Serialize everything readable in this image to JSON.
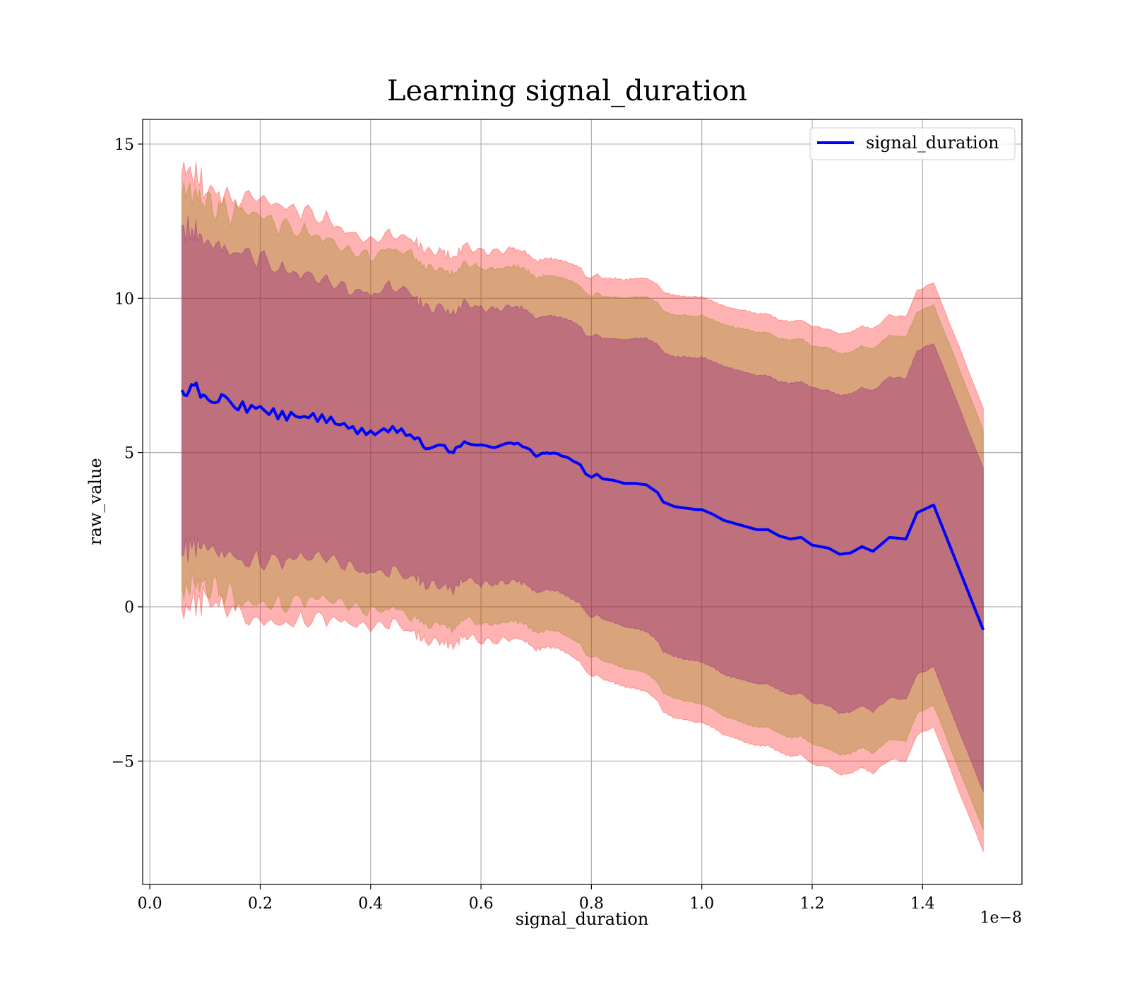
{
  "chart_data": {
    "type": "line",
    "title": "Learning signal_duration",
    "xlabel": "signal_duration",
    "ylabel": "raw_value",
    "x_offset_label": "1e−8",
    "xlim": [
      -0.013,
      1.58
    ],
    "ylim": [
      -9.0,
      15.8
    ],
    "x_ticks": [
      0.0,
      0.2,
      0.4,
      0.6,
      0.8,
      1.0,
      1.2,
      1.4
    ],
    "x_tick_labels": [
      "0.0",
      "0.2",
      "0.4",
      "0.6",
      "0.8",
      "1.0",
      "1.2",
      "1.4"
    ],
    "y_ticks": [
      -5,
      0,
      5,
      10,
      15
    ],
    "y_tick_labels": [
      "−5",
      "0",
      "5",
      "10",
      "15"
    ],
    "grid": true,
    "legend_position": "top-right",
    "series": [
      {
        "name": "signal_duration",
        "color": "#0000ff",
        "x": [
          0.058,
          0.08,
          0.1,
          0.13,
          0.16,
          0.2,
          0.24,
          0.28,
          0.32,
          0.36,
          0.4,
          0.44,
          0.48,
          0.5,
          0.53,
          0.55,
          0.57,
          0.6,
          0.63,
          0.66,
          0.68,
          0.7,
          0.72,
          0.74,
          0.76,
          0.78,
          0.79,
          0.8,
          0.81,
          0.82,
          0.84,
          0.86,
          0.88,
          0.9,
          0.92,
          0.93,
          0.95,
          0.97,
          0.99,
          1.0,
          1.02,
          1.04,
          1.06,
          1.08,
          1.1,
          1.12,
          1.14,
          1.16,
          1.18,
          1.2,
          1.23,
          1.25,
          1.27,
          1.29,
          1.31,
          1.34,
          1.37,
          1.39,
          1.42,
          1.51
        ],
        "y": [
          7.0,
          7.1,
          6.9,
          6.7,
          6.5,
          6.4,
          6.2,
          6.2,
          6.1,
          5.8,
          5.6,
          5.8,
          5.5,
          5.2,
          5.2,
          5.0,
          5.4,
          5.2,
          5.2,
          5.3,
          5.2,
          4.9,
          5.0,
          4.95,
          4.8,
          4.6,
          4.3,
          4.2,
          4.3,
          4.15,
          4.1,
          4.0,
          4.0,
          3.95,
          3.7,
          3.4,
          3.25,
          3.2,
          3.15,
          3.15,
          3.0,
          2.8,
          2.7,
          2.6,
          2.5,
          2.5,
          2.3,
          2.2,
          2.25,
          2.0,
          1.9,
          1.7,
          1.75,
          1.95,
          1.8,
          2.25,
          2.2,
          3.05,
          3.3,
          -0.75
        ]
      }
    ],
    "bands": [
      {
        "sigma": 2.0,
        "color": "#ff0000",
        "opacity": 0.3,
        "spread": [
          7.2,
          7.0,
          6.7,
          6.7,
          6.7,
          6.65,
          6.6,
          6.55,
          6.5,
          6.45,
          6.4,
          6.4,
          6.35,
          6.35,
          6.3,
          6.3,
          6.3,
          6.3,
          6.3,
          6.3,
          6.3,
          6.3,
          6.3,
          6.3,
          6.35,
          6.4,
          6.4,
          6.45,
          6.5,
          6.5,
          6.55,
          6.6,
          6.65,
          6.7,
          6.75,
          6.8,
          6.85,
          6.85,
          6.9,
          6.9,
          6.9,
          6.95,
          6.95,
          7.0,
          7.0,
          7.0,
          7.0,
          7.05,
          7.05,
          7.1,
          7.1,
          7.15,
          7.15,
          7.15,
          7.2,
          7.2,
          7.2,
          7.2,
          7.2,
          7.2
        ]
      },
      {
        "sigma": 1.65,
        "color": "#808000",
        "opacity": 0.3,
        "spread": [
          6.5,
          6.4,
          6.2,
          6.2,
          6.15,
          6.1,
          6.05,
          6.0,
          5.95,
          5.9,
          5.85,
          5.85,
          5.8,
          5.8,
          5.75,
          5.75,
          5.75,
          5.75,
          5.75,
          5.75,
          5.75,
          5.75,
          5.75,
          5.75,
          5.8,
          5.8,
          5.85,
          5.85,
          5.9,
          5.9,
          5.95,
          6.0,
          6.05,
          6.1,
          6.15,
          6.2,
          6.2,
          6.25,
          6.25,
          6.3,
          6.3,
          6.35,
          6.35,
          6.4,
          6.4,
          6.4,
          6.4,
          6.45,
          6.45,
          6.45,
          6.5,
          6.5,
          6.5,
          6.5,
          6.55,
          6.55,
          6.55,
          6.5,
          6.5,
          6.5
        ]
      },
      {
        "sigma": 1.28,
        "color": "#800080",
        "opacity": 0.3,
        "spread": [
          5.2,
          5.1,
          4.95,
          4.9,
          4.85,
          4.8,
          4.75,
          4.7,
          4.65,
          4.6,
          4.55,
          4.55,
          4.5,
          4.5,
          4.45,
          4.45,
          4.45,
          4.45,
          4.45,
          4.45,
          4.45,
          4.45,
          4.45,
          4.45,
          4.5,
          4.5,
          4.5,
          4.55,
          4.55,
          4.55,
          4.6,
          4.65,
          4.7,
          4.75,
          4.8,
          4.85,
          4.85,
          4.9,
          4.9,
          4.95,
          4.95,
          5.0,
          5.0,
          5.0,
          5.0,
          5.0,
          5.0,
          5.05,
          5.05,
          5.1,
          5.1,
          5.15,
          5.15,
          5.15,
          5.2,
          5.2,
          5.2,
          5.25,
          5.25,
          5.25
        ]
      }
    ]
  }
}
